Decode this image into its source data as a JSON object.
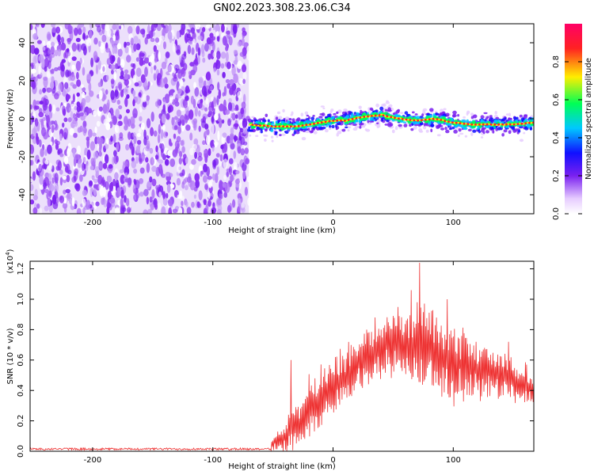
{
  "title": "GN02.2023.308.23.06.C34",
  "colors": {
    "spectrogram_noise": "#7a20f0",
    "snr_line": "#ee3333",
    "frame": "#000000"
  },
  "chart_data": [
    {
      "type": "heatmap",
      "name": "spectrogram",
      "xlabel": "Height of straight line (km)",
      "ylabel": "Frequency (Hz)",
      "xlim": [
        -252,
        167
      ],
      "ylim": [
        -50,
        50
      ],
      "xticks": [
        -200,
        -100,
        0,
        100
      ],
      "yticks": [
        -40,
        -20,
        0,
        20,
        40
      ],
      "noise_region_x": [
        -252,
        -70
      ],
      "signal_region_x": [
        -70,
        167
      ],
      "signal_center_freq_hz": [
        [
          -70,
          -3
        ],
        [
          -50,
          -4
        ],
        [
          -30,
          -4
        ],
        [
          -10,
          -2
        ],
        [
          0,
          -1
        ],
        [
          10,
          -1
        ],
        [
          25,
          1
        ],
        [
          40,
          2
        ],
        [
          55,
          0
        ],
        [
          70,
          -1
        ],
        [
          85,
          0
        ],
        [
          100,
          -2
        ],
        [
          115,
          -3
        ],
        [
          130,
          -3
        ],
        [
          150,
          -3
        ],
        [
          167,
          -2
        ]
      ],
      "colorbar": {
        "label": "Normalized spectral amplitude",
        "ticks": [
          "0.0",
          "0.2",
          "0.4",
          "0.6",
          "0.8"
        ],
        "range": [
          0,
          1
        ],
        "colors": [
          "#ffffff",
          "#e6ccff",
          "#7a20f0",
          "#1010ff",
          "#00c8ff",
          "#00ff55",
          "#ffee00",
          "#ff2222",
          "#ff0066"
        ]
      }
    },
    {
      "type": "line",
      "name": "snr",
      "xlabel": "Height of straight line (km)",
      "ylabel": "SNR (10 * v/v)",
      "multiplier": "(x10",
      "multiplier_exp": "4",
      "multiplier_close": ")",
      "xlim": [
        -252,
        167
      ],
      "ylim": [
        0,
        1.25
      ],
      "xticks": [
        -200,
        -100,
        0,
        100
      ],
      "yticks": [
        "0.0",
        "0.2",
        "0.4",
        "0.6",
        "0.8",
        "1.0",
        "1.2"
      ],
      "envelope": {
        "x": [
          -252,
          -52,
          -50,
          -40,
          -30,
          -20,
          -10,
          0,
          10,
          20,
          30,
          40,
          50,
          60,
          70,
          80,
          90,
          100,
          110,
          120,
          130,
          140,
          150,
          160,
          167
        ],
        "center": [
          0.01,
          0.01,
          0.05,
          0.1,
          0.18,
          0.28,
          0.34,
          0.42,
          0.5,
          0.56,
          0.62,
          0.68,
          0.72,
          0.72,
          0.7,
          0.66,
          0.6,
          0.58,
          0.56,
          0.54,
          0.52,
          0.5,
          0.46,
          0.44,
          0.42
        ],
        "spread": [
          0.01,
          0.01,
          0.05,
          0.1,
          0.16,
          0.2,
          0.22,
          0.22,
          0.2,
          0.18,
          0.18,
          0.2,
          0.22,
          0.24,
          0.26,
          0.26,
          0.26,
          0.24,
          0.22,
          0.18,
          0.16,
          0.15,
          0.14,
          0.13,
          0.12
        ]
      },
      "peaks": [
        {
          "x": 72,
          "y": 1.24
        },
        {
          "x": 35,
          "y": 0.88
        },
        {
          "x": 65,
          "y": 1.06
        },
        {
          "x": 95,
          "y": 1.0
        },
        {
          "x": -35,
          "y": 0.6
        },
        {
          "x": 146,
          "y": 0.72
        }
      ]
    }
  ]
}
